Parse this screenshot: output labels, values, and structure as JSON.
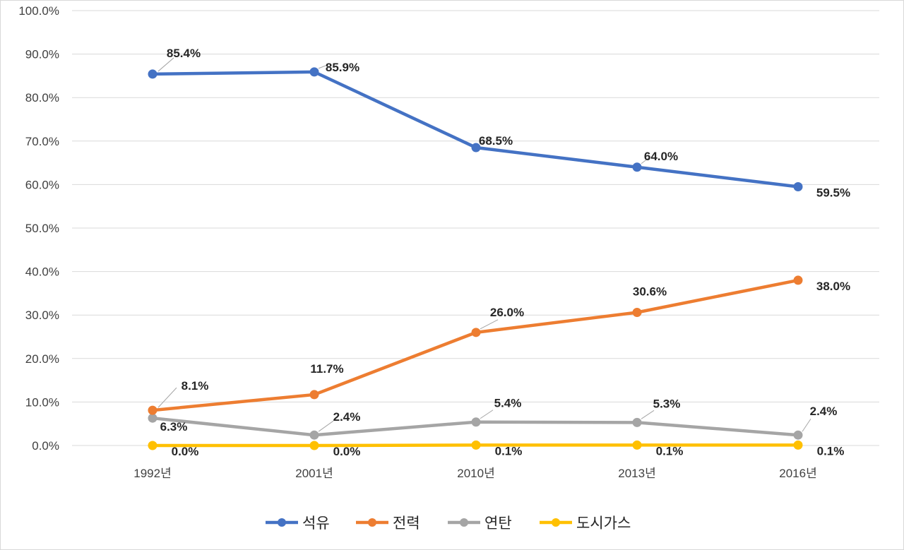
{
  "chart_data": {
    "type": "line",
    "title": "",
    "xlabel": "",
    "ylabel": "",
    "categories": [
      "1992년",
      "2001년",
      "2010년",
      "2013년",
      "2016년"
    ],
    "ylim": [
      0,
      100
    ],
    "yticks": [
      0,
      10,
      20,
      30,
      40,
      50,
      60,
      70,
      80,
      90,
      100
    ],
    "ytick_labels": [
      "0.0%",
      "10.0%",
      "20.0%",
      "30.0%",
      "40.0%",
      "50.0%",
      "60.0%",
      "70.0%",
      "80.0%",
      "90.0%",
      "100.0%"
    ],
    "grid": true,
    "legend_position": "bottom",
    "series": [
      {
        "name": "석유",
        "color": "#4472c4",
        "values": [
          85.4,
          85.9,
          68.5,
          64.0,
          59.5
        ],
        "labels": [
          "85.4%",
          "85.9%",
          "68.5%",
          "64.0%",
          "59.5%"
        ]
      },
      {
        "name": "전력",
        "color": "#ed7d31",
        "values": [
          8.1,
          11.7,
          26.0,
          30.6,
          38.0
        ],
        "labels": [
          "8.1%",
          "11.7%",
          "26.0%",
          "30.6%",
          "38.0%"
        ]
      },
      {
        "name": "연탄",
        "color": "#a5a5a5",
        "values": [
          6.3,
          2.4,
          5.4,
          5.3,
          2.4
        ],
        "labels": [
          "6.3%",
          "2.4%",
          "5.4%",
          "5.3%",
          "2.4%"
        ]
      },
      {
        "name": "도시가스",
        "color": "#ffc000",
        "values": [
          0.0,
          0.0,
          0.1,
          0.1,
          0.1
        ],
        "labels": [
          "0.0%",
          "0.0%",
          "0.1%",
          "0.1%",
          "0.1%"
        ]
      }
    ]
  }
}
